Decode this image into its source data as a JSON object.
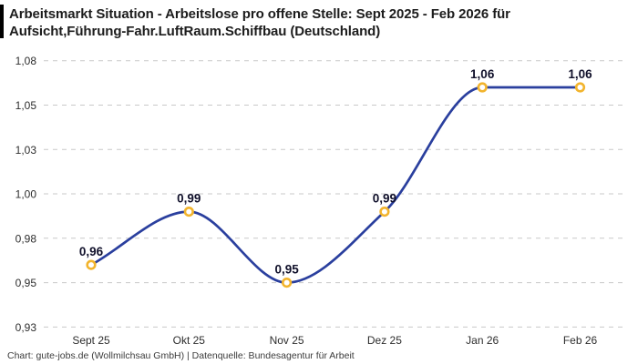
{
  "title": "Arbeitsmarkt Situation - Arbeitslose pro offene Stelle: Sept 2025 - Feb 2026 für Aufsicht,Führung-Fahr.LuftRaum.Schiffbau (Deutschland)",
  "footer": "Chart: gute-jobs.de (Wollmilchsau GmbH) | Datenquelle: Bundesagentur für Arbeit",
  "colors": {
    "line": "#2a3f9e",
    "marker_ring": "#f2b42d",
    "marker_fill": "#ffffff",
    "grid": "#c9c9c9",
    "title": "#1c1c1c",
    "tick": "#2e2e2e",
    "value_label": "#11112b",
    "accent_bar": "#000000",
    "background": "#ffffff"
  },
  "chart_data": {
    "type": "line",
    "title": "Arbeitsmarkt Situation - Arbeitslose pro offene Stelle: Sept 2025 - Feb 2026 für Aufsicht,Führung-Fahr.LuftRaum.Schiffbau (Deutschland)",
    "categories": [
      "Sept 25",
      "Okt 25",
      "Nov 25",
      "Dez 25",
      "Jan 26",
      "Feb 26"
    ],
    "values": [
      0.96,
      0.99,
      0.95,
      0.99,
      1.06,
      1.06
    ],
    "value_labels": [
      "0,96",
      "0,99",
      "0,95",
      "0,99",
      "1,06",
      "1,06"
    ],
    "series_name": "Arbeitslose pro offene Stelle",
    "xlabel": "",
    "ylabel": "",
    "ylim": [
      0.925,
      1.075
    ],
    "yticks": {
      "values": [
        1.075,
        1.05,
        1.025,
        1.0,
        0.975,
        0.95,
        0.925
      ],
      "labels": [
        "1,08",
        "1,05",
        "1,03",
        "1,00",
        "0,98",
        "0,95",
        "0,93"
      ]
    },
    "grid": "horizontal-dashed",
    "legend": "none",
    "curve": "monotone",
    "decimal_separator": ","
  }
}
